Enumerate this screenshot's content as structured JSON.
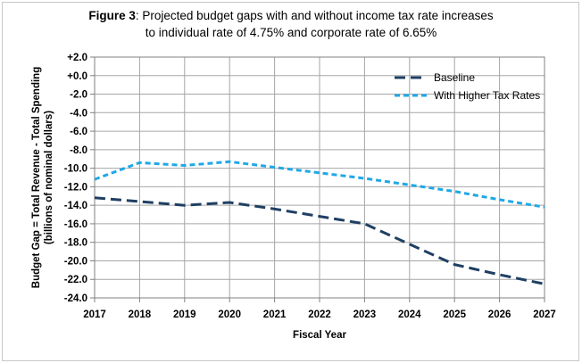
{
  "chart_data": {
    "type": "line",
    "title_bold": "Figure 3",
    "title_rest": ": Projected budget gaps with and without income tax rate increases",
    "title_line2": "to individual rate of 4.75% and corporate rate of 6.65%",
    "xlabel": "Fiscal Year",
    "ylabel_line1": "Budget Gap = Total Revenue - Total Spending",
    "ylabel_line2": "(billions of nominal dollars)",
    "x": [
      "2017",
      "2018",
      "2019",
      "2020",
      "2021",
      "2022",
      "2023",
      "2024",
      "2025",
      "2026",
      "2027"
    ],
    "ylim": [
      -24,
      2
    ],
    "yticks": [
      2,
      0,
      -2,
      -4,
      -6,
      -8,
      -10,
      -12,
      -14,
      -16,
      -18,
      -20,
      -22,
      -24
    ],
    "ytick_labels": [
      "+2.0",
      "+0.0",
      "-2.0",
      "-4.0",
      "-6.0",
      "-8.0",
      "-10.0",
      "-12.0",
      "-14.0",
      "-16.0",
      "-18.0",
      "-20.0",
      "-22.0",
      "-24.0"
    ],
    "grid": true,
    "legend_position": "top-right",
    "series": [
      {
        "name": "Baseline",
        "color": "#1f3f63",
        "dash": "long-dash",
        "values": [
          -13.2,
          -13.6,
          -14.0,
          -13.7,
          -14.4,
          -15.2,
          -16.0,
          -18.2,
          -20.4,
          -21.5,
          -22.5
        ]
      },
      {
        "name": "With Higher Tax Rates",
        "color": "#1fa8e6",
        "dash": "short-dash",
        "values": [
          -11.2,
          -9.4,
          -9.7,
          -9.3,
          -9.9,
          -10.5,
          -11.1,
          -11.8,
          -12.5,
          -13.4,
          -14.2
        ]
      }
    ]
  }
}
